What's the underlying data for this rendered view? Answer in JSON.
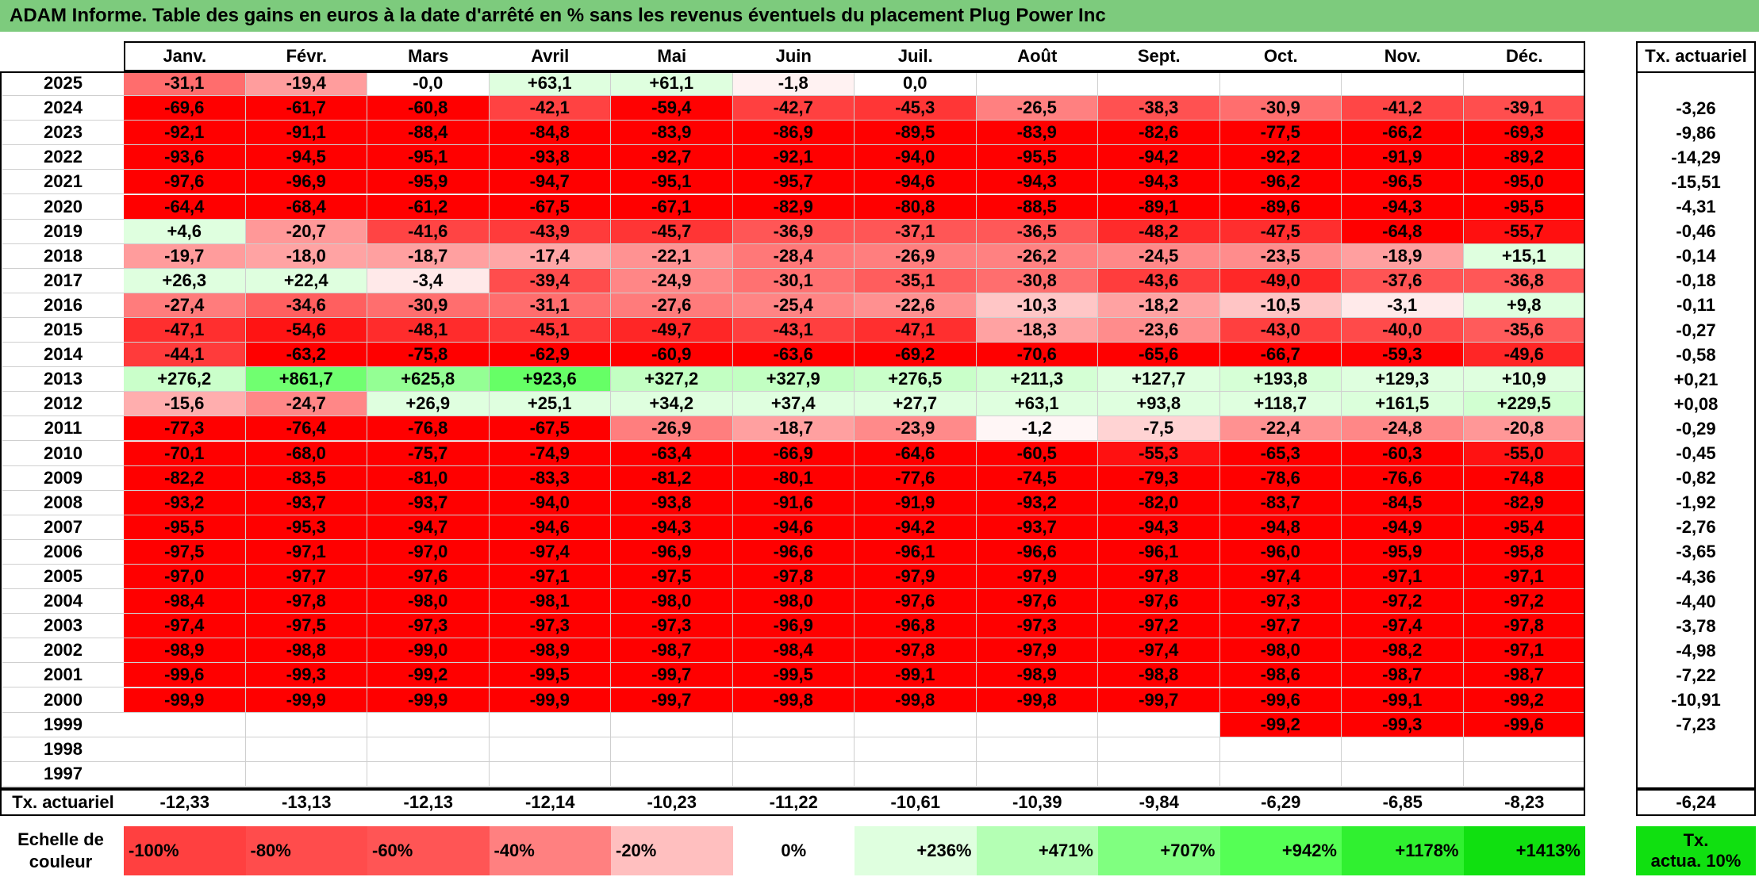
{
  "title": "ADAM Informe. Table des gains en euros à la date d'arrêté en % sans les revenus éventuels du placement Plug Power Inc",
  "months": [
    "Janv.",
    "Févr.",
    "Mars",
    "Avril",
    "Mai",
    "Juin",
    "Juil.",
    "Août",
    "Sept.",
    "Oct.",
    "Nov.",
    "Déc."
  ],
  "annual_header": "Tx. actuariel",
  "rows": [
    {
      "year": "2025",
      "values": [
        "-31,1",
        "-19,4",
        "-0,0",
        "+63,1",
        "+61,1",
        "-1,8",
        "0,0",
        "",
        "",
        "",
        "",
        ""
      ],
      "annual": ""
    },
    {
      "year": "2024",
      "values": [
        "-69,6",
        "-61,7",
        "-60,8",
        "-42,1",
        "-59,4",
        "-42,7",
        "-45,3",
        "-26,5",
        "-38,3",
        "-30,9",
        "-41,2",
        "-39,1"
      ],
      "annual": "-3,26"
    },
    {
      "year": "2023",
      "values": [
        "-92,1",
        "-91,1",
        "-88,4",
        "-84,8",
        "-83,9",
        "-86,9",
        "-89,5",
        "-83,9",
        "-82,6",
        "-77,5",
        "-66,2",
        "-69,3"
      ],
      "annual": "-9,86"
    },
    {
      "year": "2022",
      "values": [
        "-93,6",
        "-94,5",
        "-95,1",
        "-93,8",
        "-92,7",
        "-92,1",
        "-94,0",
        "-95,5",
        "-94,2",
        "-92,2",
        "-91,9",
        "-89,2"
      ],
      "annual": "-14,29"
    },
    {
      "year": "2021",
      "values": [
        "-97,6",
        "-96,9",
        "-95,9",
        "-94,7",
        "-95,1",
        "-95,7",
        "-94,6",
        "-94,3",
        "-94,3",
        "-96,2",
        "-96,5",
        "-95,0"
      ],
      "annual": "-15,51"
    },
    {
      "year": "2020",
      "values": [
        "-64,4",
        "-68,4",
        "-61,2",
        "-67,5",
        "-67,1",
        "-82,9",
        "-80,8",
        "-88,5",
        "-89,1",
        "-89,6",
        "-94,3",
        "-95,5"
      ],
      "annual": "-4,31"
    },
    {
      "year": "2019",
      "values": [
        "+4,6",
        "-20,7",
        "-41,6",
        "-43,9",
        "-45,7",
        "-36,9",
        "-37,1",
        "-36,5",
        "-48,2",
        "-47,5",
        "-64,8",
        "-55,7"
      ],
      "annual": "-0,46"
    },
    {
      "year": "2018",
      "values": [
        "-19,7",
        "-18,0",
        "-18,7",
        "-17,4",
        "-22,1",
        "-28,4",
        "-26,9",
        "-26,2",
        "-24,5",
        "-23,5",
        "-18,9",
        "+15,1"
      ],
      "annual": "-0,14"
    },
    {
      "year": "2017",
      "values": [
        "+26,3",
        "+22,4",
        "-3,4",
        "-39,4",
        "-24,9",
        "-30,1",
        "-35,1",
        "-30,8",
        "-43,6",
        "-49,0",
        "-37,6",
        "-36,8"
      ],
      "annual": "-0,18"
    },
    {
      "year": "2016",
      "values": [
        "-27,4",
        "-34,6",
        "-30,9",
        "-31,1",
        "-27,6",
        "-25,4",
        "-22,6",
        "-10,3",
        "-18,2",
        "-10,5",
        "-3,1",
        "+9,8"
      ],
      "annual": "-0,11"
    },
    {
      "year": "2015",
      "values": [
        "-47,1",
        "-54,6",
        "-48,1",
        "-45,1",
        "-49,7",
        "-43,1",
        "-47,1",
        "-18,3",
        "-23,6",
        "-43,0",
        "-40,0",
        "-35,6"
      ],
      "annual": "-0,27"
    },
    {
      "year": "2014",
      "values": [
        "-44,1",
        "-63,2",
        "-75,8",
        "-62,9",
        "-60,9",
        "-63,6",
        "-69,2",
        "-70,6",
        "-65,6",
        "-66,7",
        "-59,3",
        "-49,6"
      ],
      "annual": "-0,58"
    },
    {
      "year": "2013",
      "values": [
        "+276,2",
        "+861,7",
        "+625,8",
        "+923,6",
        "+327,2",
        "+327,9",
        "+276,5",
        "+211,3",
        "+127,7",
        "+193,8",
        "+129,3",
        "+10,9"
      ],
      "annual": "+0,21"
    },
    {
      "year": "2012",
      "values": [
        "-15,6",
        "-24,7",
        "+26,9",
        "+25,1",
        "+34,2",
        "+37,4",
        "+27,7",
        "+63,1",
        "+93,8",
        "+118,7",
        "+161,5",
        "+229,5"
      ],
      "annual": "+0,08"
    },
    {
      "year": "2011",
      "values": [
        "-77,3",
        "-76,4",
        "-76,8",
        "-67,5",
        "-26,9",
        "-18,7",
        "-23,9",
        "-1,2",
        "-7,5",
        "-22,4",
        "-24,8",
        "-20,8"
      ],
      "annual": "-0,29"
    },
    {
      "year": "2010",
      "values": [
        "-70,1",
        "-68,0",
        "-75,7",
        "-74,9",
        "-63,4",
        "-66,9",
        "-64,6",
        "-60,5",
        "-55,3",
        "-65,3",
        "-60,3",
        "-55,0"
      ],
      "annual": "-0,45"
    },
    {
      "year": "2009",
      "values": [
        "-82,2",
        "-83,5",
        "-81,0",
        "-83,3",
        "-81,2",
        "-80,1",
        "-77,6",
        "-74,5",
        "-79,3",
        "-78,6",
        "-76,6",
        "-74,8"
      ],
      "annual": "-0,82"
    },
    {
      "year": "2008",
      "values": [
        "-93,2",
        "-93,7",
        "-93,7",
        "-94,0",
        "-93,8",
        "-91,6",
        "-91,9",
        "-93,2",
        "-82,0",
        "-83,7",
        "-84,5",
        "-82,9"
      ],
      "annual": "-1,92"
    },
    {
      "year": "2007",
      "values": [
        "-95,5",
        "-95,3",
        "-94,7",
        "-94,6",
        "-94,3",
        "-94,6",
        "-94,2",
        "-93,7",
        "-94,3",
        "-94,8",
        "-94,9",
        "-95,4"
      ],
      "annual": "-2,76"
    },
    {
      "year": "2006",
      "values": [
        "-97,5",
        "-97,1",
        "-97,0",
        "-97,4",
        "-96,9",
        "-96,6",
        "-96,1",
        "-96,6",
        "-96,1",
        "-96,0",
        "-95,9",
        "-95,8"
      ],
      "annual": "-3,65"
    },
    {
      "year": "2005",
      "values": [
        "-97,0",
        "-97,7",
        "-97,6",
        "-97,1",
        "-97,5",
        "-97,8",
        "-97,9",
        "-97,9",
        "-97,8",
        "-97,4",
        "-97,1",
        "-97,1"
      ],
      "annual": "-4,36"
    },
    {
      "year": "2004",
      "values": [
        "-98,4",
        "-97,8",
        "-98,0",
        "-98,1",
        "-98,0",
        "-98,0",
        "-97,6",
        "-97,6",
        "-97,6",
        "-97,3",
        "-97,2",
        "-97,2"
      ],
      "annual": "-4,40"
    },
    {
      "year": "2003",
      "values": [
        "-97,4",
        "-97,5",
        "-97,3",
        "-97,3",
        "-97,3",
        "-96,9",
        "-96,8",
        "-97,3",
        "-97,2",
        "-97,7",
        "-97,4",
        "-97,8"
      ],
      "annual": "-3,78"
    },
    {
      "year": "2002",
      "values": [
        "-98,9",
        "-98,8",
        "-99,0",
        "-98,9",
        "-98,7",
        "-98,4",
        "-97,8",
        "-97,9",
        "-97,4",
        "-98,0",
        "-98,2",
        "-97,1"
      ],
      "annual": "-4,98"
    },
    {
      "year": "2001",
      "values": [
        "-99,6",
        "-99,3",
        "-99,2",
        "-99,5",
        "-99,7",
        "-99,5",
        "-99,1",
        "-98,9",
        "-98,8",
        "-98,6",
        "-98,7",
        "-98,7"
      ],
      "annual": "-7,22"
    },
    {
      "year": "2000",
      "values": [
        "-99,9",
        "-99,9",
        "-99,9",
        "-99,9",
        "-99,7",
        "-99,8",
        "-99,8",
        "-99,8",
        "-99,7",
        "-99,6",
        "-99,1",
        "-99,2"
      ],
      "annual": "-10,91"
    },
    {
      "year": "1999",
      "values": [
        "",
        "",
        "",
        "",
        "",
        "",
        "",
        "",
        "",
        "-99,2",
        "-99,3",
        "-99,6"
      ],
      "annual": "-7,23"
    },
    {
      "year": "1998",
      "values": [
        "",
        "",
        "",
        "",
        "",
        "",
        "",
        "",
        "",
        "",
        "",
        ""
      ],
      "annual": ""
    },
    {
      "year": "1997",
      "values": [
        "",
        "",
        "",
        "",
        "",
        "",
        "",
        "",
        "",
        "",
        "",
        ""
      ],
      "annual": ""
    }
  ],
  "footer": {
    "label": "Tx. actuariel",
    "values": [
      "-12,33",
      "-13,13",
      "-12,13",
      "-12,14",
      "-10,23",
      "-11,22",
      "-10,61",
      "-10,39",
      "-9,84",
      "-6,29",
      "-6,85",
      "-8,23"
    ],
    "annual": "-6,24"
  },
  "legend": {
    "label_line1": "Echelle de",
    "label_line2": "couleur",
    "items": [
      {
        "text": "-100%",
        "color": "#ff4040",
        "align": "left"
      },
      {
        "text": "-80%",
        "color": "#ff4c4c",
        "align": "left"
      },
      {
        "text": "-60%",
        "color": "#ff5555",
        "align": "left"
      },
      {
        "text": "-40%",
        "color": "#ff8080",
        "align": "left"
      },
      {
        "text": "-20%",
        "color": "#ffbfbf",
        "align": "left"
      },
      {
        "text": "0%",
        "color": "#ffffff",
        "align": "center"
      },
      {
        "text": "+236%",
        "color": "#dfffdf",
        "align": "right"
      },
      {
        "text": "+471%",
        "color": "#b4ffb4",
        "align": "right"
      },
      {
        "text": "+707%",
        "color": "#80ff80",
        "align": "right"
      },
      {
        "text": "+942%",
        "color": "#55ff55",
        "align": "right"
      },
      {
        "text": "+1178%",
        "color": "#30f030",
        "align": "right"
      },
      {
        "text": "+1413%",
        "color": "#10e010",
        "align": "right"
      }
    ],
    "side_line1": "Tx.",
    "side_line2": "actua. 10%",
    "side_color": "#10e010"
  },
  "colors": {
    "title_bg": "#7dcb7d",
    "negative_full": "#ff0000",
    "positive_full": "#66ff66"
  }
}
